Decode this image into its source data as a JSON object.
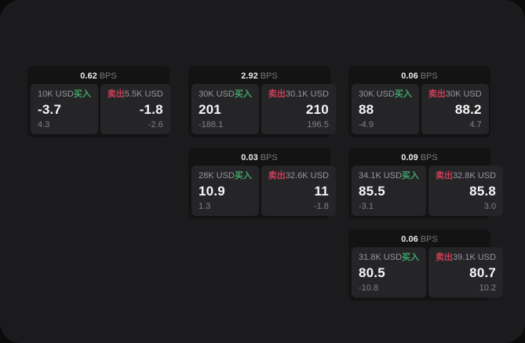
{
  "theme": {
    "page_bg": "#0b0b0c",
    "container_bg": "#1b1b1d",
    "card_bg": "#131314",
    "panel_bg": "#252528",
    "buy_color": "#3fa566",
    "sell_color": "#cb3e56",
    "price_color": "#f6f6f7",
    "muted_color": "#98989c"
  },
  "labels": {
    "bps_suffix": "BPS",
    "buy": "买入",
    "sell": "卖出"
  },
  "cards": [
    {
      "bps": "0.62",
      "grid": {
        "col": 1,
        "row": 1
      },
      "buy": {
        "size": "10K USD",
        "price": "-3.7",
        "delta": "4.3"
      },
      "sell": {
        "size": "5.5K USD",
        "price": "-1.8",
        "delta": "-2.6"
      }
    },
    {
      "bps": "2.92",
      "grid": {
        "col": 2,
        "row": 1
      },
      "buy": {
        "size": "30K USD",
        "price": "201",
        "delta": "-188.1"
      },
      "sell": {
        "size": "30.1K USD",
        "price": "210",
        "delta": "196.5"
      }
    },
    {
      "bps": "0.06",
      "grid": {
        "col": 3,
        "row": 1
      },
      "buy": {
        "size": "30K USD",
        "price": "88",
        "delta": "-4.9"
      },
      "sell": {
        "size": "30K USD",
        "price": "88.2",
        "delta": "4.7"
      }
    },
    {
      "bps": "0.03",
      "grid": {
        "col": 2,
        "row": 2
      },
      "buy": {
        "size": "28K USD",
        "price": "10.9",
        "delta": "1.3"
      },
      "sell": {
        "size": "32.6K USD",
        "price": "11",
        "delta": "-1.8"
      }
    },
    {
      "bps": "0.09",
      "grid": {
        "col": 3,
        "row": 2
      },
      "buy": {
        "size": "34.1K USD",
        "price": "85.5",
        "delta": "-3.1"
      },
      "sell": {
        "size": "32.8K USD",
        "price": "85.8",
        "delta": "3.0"
      }
    },
    {
      "bps": "0.06",
      "grid": {
        "col": 3,
        "row": 3
      },
      "buy": {
        "size": "31.8K USD",
        "price": "80.5",
        "delta": "-10.8"
      },
      "sell": {
        "size": "39.1K USD",
        "price": "80.7",
        "delta": "10.2"
      }
    }
  ]
}
